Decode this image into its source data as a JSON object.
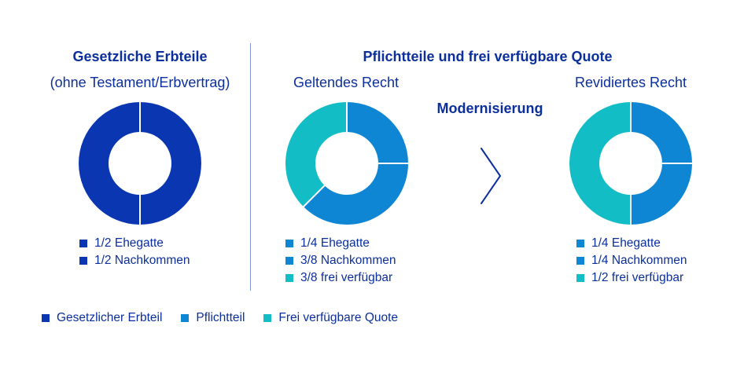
{
  "colors": {
    "gesetzlicher_erbteil": "#0a36b2",
    "pflichtteil": "#0f86d4",
    "frei_verfuegbar": "#13bdc6",
    "separator": "#ffffff",
    "text": "#0b2f9c"
  },
  "left": {
    "title": "Gesetzliche Erbteile",
    "subtitle": "(ohne Testament/Erbvertrag)"
  },
  "right": {
    "title": "Pflichtteile und frei verfügbare Quote",
    "current_label": "Geltendes Recht",
    "revised_label": "Revidiertes Recht",
    "middle_label": "Modernisierung",
    "arrow_icon": "chevron-right-icon"
  },
  "chart_data": [
    {
      "type": "pie",
      "subtitle": "(ohne Testament/Erbvertrag)",
      "slices": [
        {
          "label": "1/2 Ehegatte",
          "value": 0.5,
          "category": "gesetzlicher_erbteil"
        },
        {
          "label": "1/2 Nachkommen",
          "value": 0.5,
          "category": "gesetzlicher_erbteil"
        }
      ]
    },
    {
      "type": "pie",
      "title": "Geltendes Recht",
      "slices": [
        {
          "label": "1/4 Ehegatte",
          "value": 0.25,
          "category": "pflichtteil"
        },
        {
          "label": "3/8 Nachkommen",
          "value": 0.375,
          "category": "pflichtteil"
        },
        {
          "label": "3/8 frei verfügbar",
          "value": 0.375,
          "category": "frei_verfuegbar"
        }
      ]
    },
    {
      "type": "pie",
      "title": "Revidiertes Recht",
      "slices": [
        {
          "label": "1/4 Ehegatte",
          "value": 0.25,
          "category": "pflichtteil"
        },
        {
          "label": "1/4 Nachkommen",
          "value": 0.25,
          "category": "pflichtteil"
        },
        {
          "label": "1/2 frei verfügbar",
          "value": 0.5,
          "category": "frei_verfuegbar"
        }
      ]
    }
  ],
  "legend": [
    {
      "label": "Gesetzlicher Erbteil",
      "category": "gesetzlicher_erbteil"
    },
    {
      "label": "Pflichtteil",
      "category": "pflichtteil"
    },
    {
      "label": "Frei verfügbare Quote",
      "category": "frei_verfuegbar"
    }
  ]
}
